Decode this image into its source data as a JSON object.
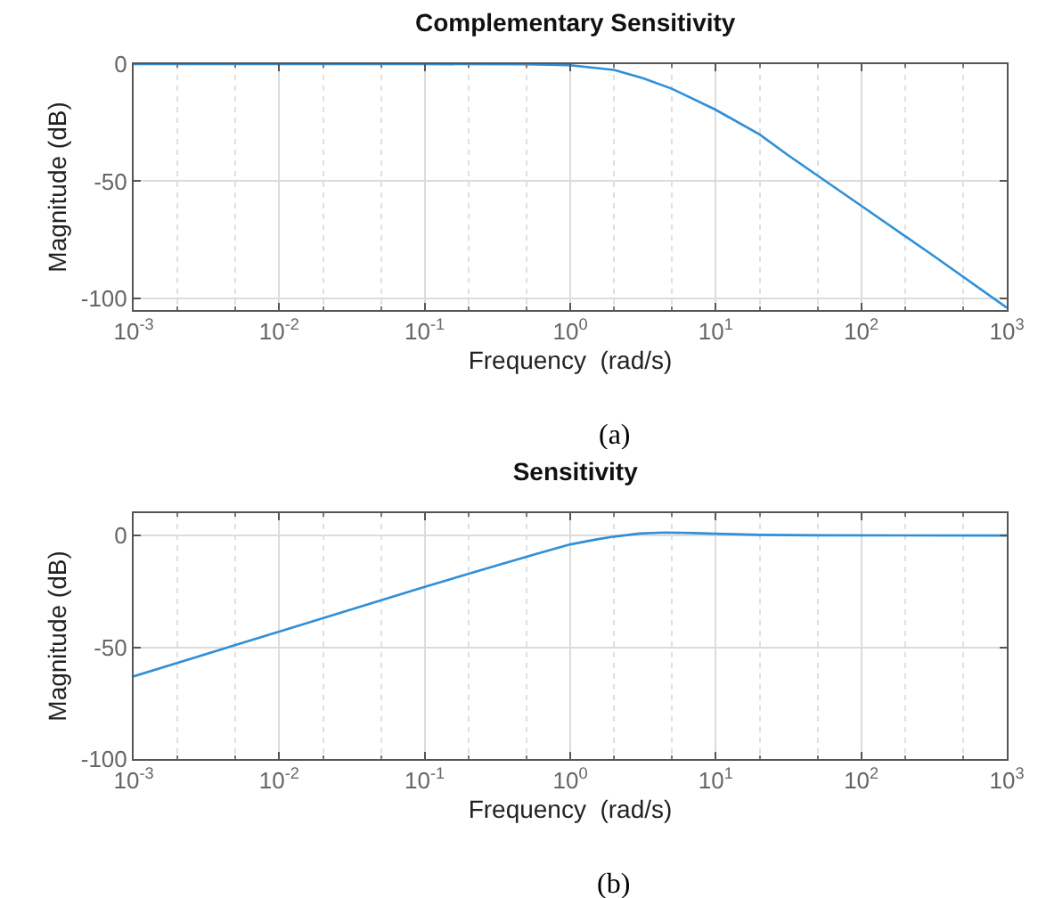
{
  "chart_data": [
    {
      "type": "line",
      "title": "Complementary Sensitivity",
      "xlabel": "Frequency  (rad/s)",
      "ylabel": "Magnitude (dB)",
      "annotations": [
        "(a)"
      ],
      "log": "x",
      "grid": true,
      "line_style": "solid",
      "marker": "none",
      "xlim": [
        0.001,
        1000
      ],
      "ylim": [
        -105,
        0
      ],
      "xticks": [
        {
          "value": 0.001,
          "label": "10$^{-3}$"
        },
        {
          "value": 0.01,
          "label": "10$^{-2}$"
        },
        {
          "value": 0.1,
          "label": "10$^{-1}$"
        },
        {
          "value": 1,
          "label": "10$^{0}$"
        },
        {
          "value": 10,
          "label": "10$^{1}$"
        },
        {
          "value": 100,
          "label": "10$^{2}$"
        },
        {
          "value": 1000,
          "label": "10$^{3}$"
        }
      ],
      "yticks": [
        -100,
        -50,
        0
      ],
      "x": [
        0.001,
        0.01,
        0.1,
        0.5,
        1,
        2,
        3.16,
        5,
        10,
        20,
        31.6,
        100,
        316,
        1000
      ],
      "series": [
        {
          "color": "#2f8fd8",
          "values": [
            0,
            0,
            0,
            -0.1,
            -0.5,
            -2.5,
            -6,
            -10.5,
            -19.5,
            -30,
            -39,
            -60.5,
            -82,
            -104
          ]
        }
      ]
    },
    {
      "type": "line",
      "title": "Sensitivity",
      "xlabel": "Frequency  (rad/s)",
      "ylabel": "Magnitude (dB)",
      "annotations": [
        "(b)"
      ],
      "log": "x",
      "grid": true,
      "line_style": "solid",
      "marker": "none",
      "xlim": [
        0.001,
        1000
      ],
      "ylim": [
        -100,
        10
      ],
      "xticks": [
        {
          "value": 0.001,
          "label": "10$^{-3}$"
        },
        {
          "value": 0.01,
          "label": "10$^{-2}$"
        },
        {
          "value": 0.1,
          "label": "10$^{-1}$"
        },
        {
          "value": 1,
          "label": "10$^{0}$"
        },
        {
          "value": 10,
          "label": "10$^{1}$"
        },
        {
          "value": 100,
          "label": "10$^{2}$"
        },
        {
          "value": 1000,
          "label": "10$^{3}$"
        }
      ],
      "yticks": [
        -100,
        -50,
        0
      ],
      "x": [
        0.001,
        0.01,
        0.1,
        0.316,
        0.6,
        1,
        1.5,
        2,
        3,
        4.5,
        7,
        10,
        20,
        50,
        1000
      ],
      "series": [
        {
          "color": "#2f8fd8",
          "values": [
            -63,
            -43,
            -23,
            -13.3,
            -8,
            -4,
            -1.8,
            -0.5,
            0.9,
            1.3,
            1.1,
            0.8,
            0.3,
            0.1,
            0
          ]
        }
      ]
    }
  ]
}
